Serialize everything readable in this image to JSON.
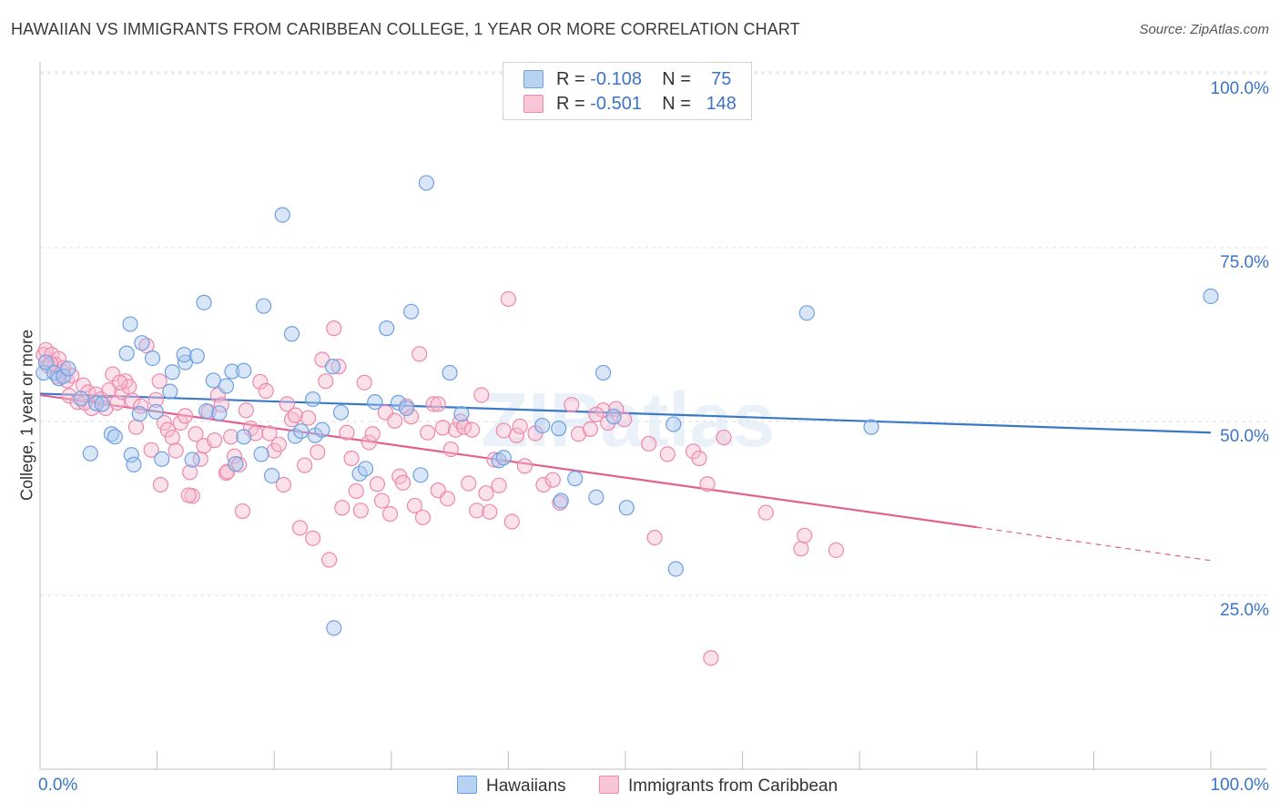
{
  "chart_data": {
    "type": "scatter",
    "title": "HAWAIIAN VS IMMIGRANTS FROM CARIBBEAN COLLEGE, 1 YEAR OR MORE CORRELATION CHART",
    "source": "Source: ZipAtlas.com",
    "watermark": "ZIPatlas",
    "ylabel": "College, 1 year or more",
    "xlabel": "",
    "xlim": [
      0,
      100
    ],
    "ylim": [
      0,
      104
    ],
    "x_tick_labels": [
      "0.0%",
      "100.0%"
    ],
    "y_tick_labels": [
      {
        "value": 25,
        "label": "25.0%"
      },
      {
        "value": 50,
        "label": "50.0%"
      },
      {
        "value": 75,
        "label": "75.0%"
      },
      {
        "value": 100,
        "label": "100.0%"
      }
    ],
    "grid": true,
    "legend_top": [
      {
        "r_label": "R =",
        "r": "-0.108",
        "n_label": "N =",
        "n": "75"
      },
      {
        "r_label": "R =",
        "r": "-0.501",
        "n_label": "N =",
        "n": "148"
      }
    ],
    "series": [
      {
        "name": "Hawaiians",
        "color": "#6fa0e0",
        "fill": "#a9c8f0",
        "trend_color": "#3a78c9",
        "trend": [
          [
            0,
            54.0
          ],
          [
            100,
            48.4
          ]
        ],
        "points": [
          [
            0.3,
            57.0
          ],
          [
            0.5,
            58.5
          ],
          [
            1.2,
            57.0
          ],
          [
            1.6,
            56.2
          ],
          [
            2.0,
            56.5
          ],
          [
            2.4,
            57.6
          ],
          [
            3.5,
            53.3
          ],
          [
            4.8,
            52.6
          ],
          [
            5.3,
            52.5
          ],
          [
            6.1,
            48.2
          ],
          [
            6.4,
            47.8
          ],
          [
            4.3,
            45.4
          ],
          [
            7.7,
            64.0
          ],
          [
            7.4,
            59.8
          ],
          [
            7.8,
            45.2
          ],
          [
            8.5,
            51.1
          ],
          [
            8.7,
            61.3
          ],
          [
            9.6,
            59.1
          ],
          [
            9.9,
            51.4
          ],
          [
            10.4,
            44.6
          ],
          [
            11.3,
            57.1
          ],
          [
            11.1,
            54.3
          ],
          [
            12.4,
            58.5
          ],
          [
            12.3,
            59.6
          ],
          [
            13.0,
            44.5
          ],
          [
            13.4,
            59.4
          ],
          [
            14.0,
            67.1
          ],
          [
            14.2,
            51.5
          ],
          [
            14.8,
            55.9
          ],
          [
            15.3,
            51.2
          ],
          [
            15.9,
            55.1
          ],
          [
            16.4,
            57.2
          ],
          [
            16.7,
            43.9
          ],
          [
            17.4,
            57.3
          ],
          [
            17.4,
            47.8
          ],
          [
            18.9,
            45.3
          ],
          [
            19.1,
            66.6
          ],
          [
            19.8,
            42.2
          ],
          [
            20.7,
            79.7
          ],
          [
            21.5,
            62.6
          ],
          [
            21.8,
            47.9
          ],
          [
            22.3,
            48.6
          ],
          [
            23.5,
            48.0
          ],
          [
            23.3,
            53.2
          ],
          [
            24.1,
            48.8
          ],
          [
            25.0,
            57.9
          ],
          [
            25.7,
            51.3
          ],
          [
            25.1,
            20.3
          ],
          [
            27.3,
            42.5
          ],
          [
            27.8,
            43.2
          ],
          [
            28.6,
            52.8
          ],
          [
            29.6,
            63.4
          ],
          [
            30.6,
            52.7
          ],
          [
            31.3,
            51.9
          ],
          [
            31.7,
            65.8
          ],
          [
            32.5,
            42.3
          ],
          [
            33.0,
            84.3
          ],
          [
            35.0,
            57.0
          ],
          [
            36.0,
            51.1
          ],
          [
            39.2,
            44.4
          ],
          [
            39.6,
            44.8
          ],
          [
            42.9,
            49.4
          ],
          [
            44.3,
            49.0
          ],
          [
            44.5,
            38.6
          ],
          [
            45.7,
            41.8
          ],
          [
            47.5,
            39.1
          ],
          [
            48.1,
            57.0
          ],
          [
            49.0,
            50.7
          ],
          [
            50.1,
            37.6
          ],
          [
            54.1,
            49.6
          ],
          [
            54.3,
            28.8
          ],
          [
            65.5,
            65.6
          ],
          [
            71.0,
            49.2
          ],
          [
            100.0,
            68.0
          ],
          [
            8.0,
            43.8
          ]
        ]
      },
      {
        "name": "Immigrants from Caribbean",
        "color": "#ee88ac",
        "fill": "#f6bcd0",
        "trend_color": "#e0628e",
        "trend": [
          [
            0,
            53.8
          ],
          [
            80,
            34.8
          ]
        ],
        "trend_dashed": [
          [
            80,
            34.8
          ],
          [
            100,
            30.0
          ]
        ],
        "points": [
          [
            0.3,
            59.6
          ],
          [
            0.5,
            60.3
          ],
          [
            0.7,
            58.0
          ],
          [
            1.0,
            59.6
          ],
          [
            1.3,
            58.2
          ],
          [
            1.6,
            59.0
          ],
          [
            1.9,
            57.2
          ],
          [
            2.3,
            55.9
          ],
          [
            2.5,
            53.7
          ],
          [
            2.7,
            56.6
          ],
          [
            3.2,
            52.8
          ],
          [
            3.7,
            55.2
          ],
          [
            4.1,
            54.2
          ],
          [
            4.4,
            51.9
          ],
          [
            4.8,
            53.9
          ],
          [
            5.2,
            53.2
          ],
          [
            5.6,
            51.9
          ],
          [
            5.9,
            54.5
          ],
          [
            6.2,
            56.8
          ],
          [
            6.6,
            52.7
          ],
          [
            7.0,
            54.2
          ],
          [
            7.3,
            55.8
          ],
          [
            7.6,
            55.0
          ],
          [
            7.9,
            53.0
          ],
          [
            8.2,
            49.2
          ],
          [
            8.6,
            52.2
          ],
          [
            9.1,
            60.9
          ],
          [
            9.5,
            45.9
          ],
          [
            9.9,
            53.1
          ],
          [
            10.2,
            55.8
          ],
          [
            10.6,
            49.8
          ],
          [
            10.9,
            48.8
          ],
          [
            11.3,
            47.7
          ],
          [
            11.6,
            45.8
          ],
          [
            12.0,
            49.8
          ],
          [
            12.4,
            50.8
          ],
          [
            12.8,
            42.7
          ],
          [
            13.0,
            39.3
          ],
          [
            13.3,
            48.2
          ],
          [
            13.7,
            44.6
          ],
          [
            14.0,
            46.5
          ],
          [
            14.4,
            51.4
          ],
          [
            14.9,
            47.3
          ],
          [
            15.2,
            53.8
          ],
          [
            15.5,
            52.4
          ],
          [
            15.9,
            42.6
          ],
          [
            16.3,
            47.8
          ],
          [
            16.6,
            45.0
          ],
          [
            17.0,
            43.8
          ],
          [
            17.3,
            37.1
          ],
          [
            17.6,
            51.6
          ],
          [
            18.0,
            49.0
          ],
          [
            18.4,
            48.3
          ],
          [
            18.8,
            55.7
          ],
          [
            19.3,
            54.4
          ],
          [
            19.6,
            48.3
          ],
          [
            20.0,
            45.8
          ],
          [
            20.4,
            46.7
          ],
          [
            20.8,
            40.9
          ],
          [
            21.1,
            52.5
          ],
          [
            21.5,
            50.3
          ],
          [
            21.8,
            50.9
          ],
          [
            22.2,
            34.7
          ],
          [
            22.6,
            43.7
          ],
          [
            22.9,
            50.5
          ],
          [
            23.3,
            33.2
          ],
          [
            23.7,
            45.6
          ],
          [
            24.1,
            58.9
          ],
          [
            24.4,
            55.8
          ],
          [
            24.7,
            30.1
          ],
          [
            25.1,
            63.4
          ],
          [
            25.5,
            57.9
          ],
          [
            25.8,
            37.6
          ],
          [
            26.2,
            48.4
          ],
          [
            26.6,
            44.7
          ],
          [
            27.0,
            40.0
          ],
          [
            27.4,
            37.2
          ],
          [
            27.7,
            55.6
          ],
          [
            28.1,
            47.0
          ],
          [
            28.4,
            48.2
          ],
          [
            28.8,
            41.0
          ],
          [
            29.2,
            38.6
          ],
          [
            29.5,
            51.3
          ],
          [
            29.9,
            36.7
          ],
          [
            30.3,
            50.1
          ],
          [
            30.7,
            42.1
          ],
          [
            31.0,
            41.2
          ],
          [
            31.3,
            52.2
          ],
          [
            31.7,
            50.7
          ],
          [
            32.0,
            37.9
          ],
          [
            32.4,
            59.7
          ],
          [
            32.7,
            36.2
          ],
          [
            33.1,
            48.4
          ],
          [
            33.6,
            52.5
          ],
          [
            34.0,
            40.1
          ],
          [
            34.4,
            49.1
          ],
          [
            34.8,
            38.9
          ],
          [
            35.1,
            46.0
          ],
          [
            35.5,
            48.8
          ],
          [
            35.9,
            50.0
          ],
          [
            36.2,
            49.2
          ],
          [
            36.6,
            41.1
          ],
          [
            36.9,
            48.8
          ],
          [
            37.3,
            37.2
          ],
          [
            37.7,
            53.8
          ],
          [
            38.1,
            39.7
          ],
          [
            38.4,
            37.0
          ],
          [
            38.8,
            44.5
          ],
          [
            39.2,
            40.8
          ],
          [
            39.6,
            48.7
          ],
          [
            40.0,
            67.6
          ],
          [
            40.3,
            35.6
          ],
          [
            40.7,
            48.0
          ],
          [
            41.0,
            49.3
          ],
          [
            41.4,
            43.6
          ],
          [
            42.3,
            48.3
          ],
          [
            43.0,
            40.9
          ],
          [
            43.8,
            41.6
          ],
          [
            44.4,
            38.3
          ],
          [
            46.0,
            48.2
          ],
          [
            45.4,
            52.4
          ],
          [
            47.0,
            48.9
          ],
          [
            48.1,
            51.6
          ],
          [
            48.5,
            49.8
          ],
          [
            49.2,
            51.8
          ],
          [
            49.9,
            50.3
          ],
          [
            52.0,
            46.8
          ],
          [
            52.5,
            33.3
          ],
          [
            53.6,
            45.3
          ],
          [
            55.8,
            45.7
          ],
          [
            56.3,
            44.7
          ],
          [
            57.0,
            41.0
          ],
          [
            57.3,
            16.0
          ],
          [
            58.4,
            47.7
          ],
          [
            62.0,
            36.9
          ],
          [
            65.0,
            31.7
          ],
          [
            65.3,
            33.6
          ],
          [
            68.0,
            31.5
          ],
          [
            12.7,
            39.4
          ],
          [
            10.3,
            40.9
          ],
          [
            6.8,
            55.6
          ],
          [
            3.8,
            52.7
          ],
          [
            2.0,
            57.7
          ],
          [
            1.5,
            56.5
          ],
          [
            0.9,
            58.3
          ],
          [
            16.0,
            42.8
          ],
          [
            34.0,
            52.5
          ],
          [
            47.5,
            51.0
          ]
        ]
      }
    ]
  }
}
